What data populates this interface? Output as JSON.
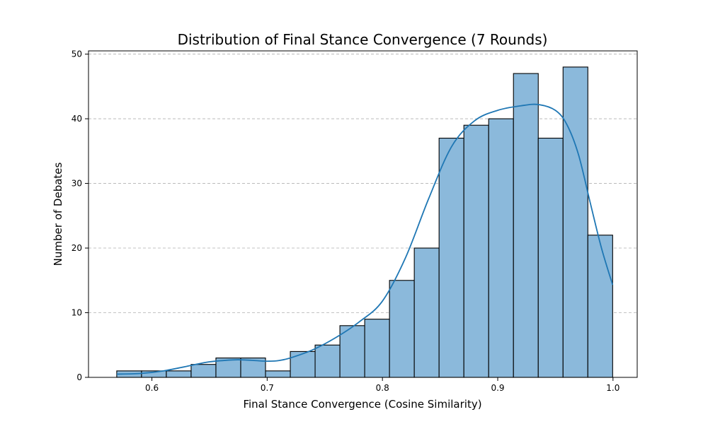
{
  "chart_data": {
    "type": "bar",
    "subtype": "histogram",
    "title": "Distribution of Final Stance Convergence (7 Rounds)",
    "xlabel": "Final Stance Convergence (Cosine Similarity)",
    "ylabel": "Number of Debates",
    "xlim": [
      0.545,
      1.021
    ],
    "ylim": [
      0,
      50.5
    ],
    "xticks": [
      0.6,
      0.7,
      0.8,
      0.9,
      1.0
    ],
    "xtick_labels": [
      "0.6",
      "0.7",
      "0.8",
      "0.9",
      "1.0"
    ],
    "yticks": [
      0,
      10,
      20,
      30,
      40,
      50
    ],
    "ytick_labels": [
      "0",
      "10",
      "20",
      "30",
      "40",
      "50"
    ],
    "grid": "y-dashed",
    "bin_edges": [
      0.5695,
      0.59101,
      0.61252,
      0.63403,
      0.65554,
      0.67705,
      0.69856,
      0.72007,
      0.74158,
      0.76309,
      0.7846,
      0.80611,
      0.82762,
      0.84913,
      0.87064,
      0.89215,
      0.91366,
      0.93517,
      0.95668,
      0.97819,
      0.9997
    ],
    "values": [
      1,
      1,
      1,
      2,
      3,
      3,
      1,
      4,
      5,
      8,
      9,
      15,
      20,
      37,
      39,
      40,
      47,
      37,
      48,
      22
    ],
    "kde": {
      "x": [
        0.5695,
        0.59,
        0.61,
        0.63,
        0.65,
        0.67,
        0.68,
        0.69,
        0.7,
        0.71,
        0.72,
        0.74,
        0.76,
        0.78,
        0.8,
        0.82,
        0.84,
        0.86,
        0.88,
        0.9,
        0.92,
        0.935,
        0.95,
        0.96,
        0.97,
        0.98,
        0.99,
        0.9997
      ],
      "y": [
        0.5,
        0.6,
        1.0,
        1.7,
        2.4,
        2.7,
        2.7,
        2.6,
        2.5,
        2.6,
        3.0,
        4.3,
        6.2,
        8.6,
        11.8,
        18.5,
        27.6,
        35.7,
        39.7,
        41.3,
        42.0,
        42.2,
        41.3,
        39.1,
        34.5,
        27.2,
        20.0,
        14.3
      ]
    },
    "colors": {
      "bar": "#8bb9db",
      "edge": "#000000",
      "kde": "#1f77b4"
    }
  }
}
